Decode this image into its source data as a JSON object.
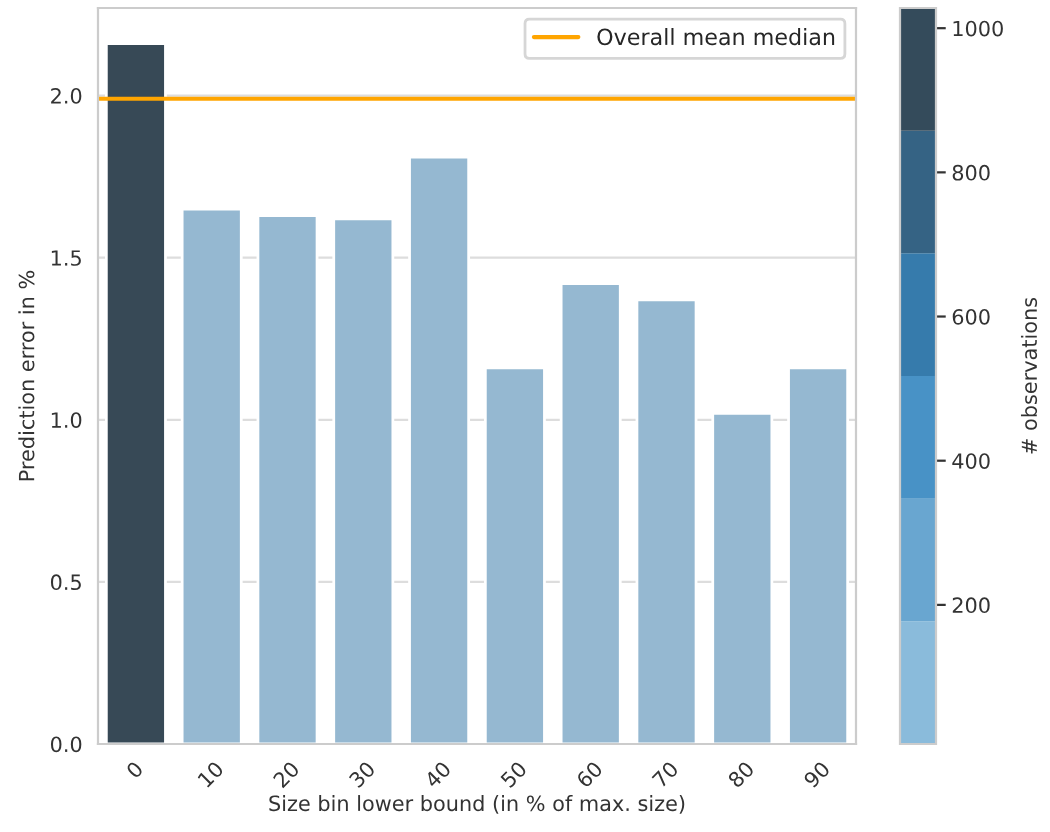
{
  "chart_data": {
    "type": "bar",
    "categories": [
      "0",
      "10",
      "20",
      "30",
      "40",
      "50",
      "60",
      "70",
      "80",
      "90"
    ],
    "values": [
      2.16,
      1.65,
      1.63,
      1.62,
      1.81,
      1.16,
      1.42,
      1.37,
      1.02,
      1.16
    ],
    "colors": [
      "#374956",
      "#95b8d1",
      "#95b8d1",
      "#95b8d1",
      "#95b8d1",
      "#95b8d1",
      "#95b8d1",
      "#95b8d1",
      "#95b8d1",
      "#95b8d1"
    ],
    "xlabel": "Size bin lower bound (in % of max. size)",
    "ylabel": "Prediction error in %",
    "ylim": [
      0,
      2.27
    ],
    "yticks": [
      {
        "value": 0,
        "label": "0.0"
      },
      {
        "value": 0.5,
        "label": "0.5"
      },
      {
        "value": 1,
        "label": "1.0"
      },
      {
        "value": 1.5,
        "label": "1.5"
      },
      {
        "value": 2,
        "label": "2.0"
      }
    ],
    "ref_lines": [
      {
        "axis": "y",
        "value": 1.99,
        "label": "Overall mean median",
        "color": "#ffa500"
      }
    ],
    "clabel": "# observations",
    "clim": [
      7,
      1028
    ],
    "cticks": [
      200,
      400,
      600,
      800,
      1000
    ],
    "grid": "y",
    "legend": "top right"
  }
}
